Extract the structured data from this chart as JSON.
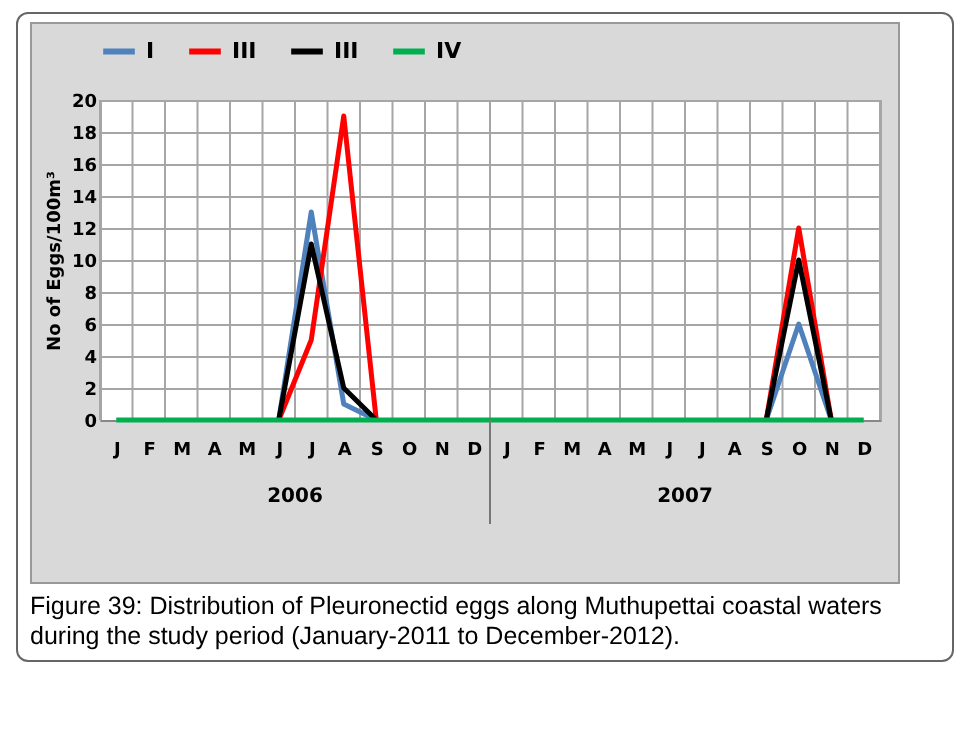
{
  "chart_data": {
    "type": "line",
    "title": "Figure 39: Distribution of Pleuronectid eggs along Muthupettai coastal waters during the study period (January-2011 to December-2012).",
    "ylabel": "No of Eggs/100m³",
    "categories": [
      "J",
      "F",
      "M",
      "A",
      "M",
      "J",
      "J",
      "A",
      "S",
      "O",
      "N",
      "D",
      "J",
      "F",
      "M",
      "A",
      "M",
      "J",
      "J",
      "A",
      "S",
      "O",
      "N",
      "D"
    ],
    "annotations": [
      "2006",
      "2007"
    ],
    "ylim": [
      0,
      20
    ],
    "yticks": [
      0,
      2,
      4,
      6,
      8,
      10,
      12,
      14,
      16,
      18,
      20
    ],
    "grid": true,
    "legend": "top",
    "line_style": "solid",
    "marker": "none",
    "series": [
      {
        "name": "I",
        "color": "#4f81bd",
        "values": [
          null,
          null,
          null,
          null,
          null,
          0,
          13,
          1,
          0,
          null,
          null,
          null,
          null,
          null,
          null,
          null,
          null,
          null,
          null,
          null,
          0,
          6,
          0,
          null
        ]
      },
      {
        "name": "III",
        "color": "#ff0000",
        "values": [
          null,
          null,
          null,
          null,
          null,
          0,
          5,
          19,
          0,
          null,
          null,
          null,
          null,
          null,
          null,
          null,
          null,
          null,
          null,
          null,
          0,
          12,
          0,
          null
        ]
      },
      {
        "name": "III",
        "color": "#000000",
        "values": [
          null,
          null,
          null,
          null,
          null,
          0,
          11,
          2,
          0,
          null,
          null,
          null,
          null,
          null,
          null,
          null,
          null,
          null,
          null,
          null,
          0,
          10,
          0,
          null
        ]
      },
      {
        "name": "IV",
        "color": "#00b050",
        "values": [
          0,
          0,
          0,
          0,
          0,
          0,
          0,
          0,
          0,
          0,
          0,
          0,
          0,
          0,
          0,
          0,
          0,
          0,
          0,
          0,
          0,
          0,
          0,
          0
        ]
      }
    ]
  }
}
